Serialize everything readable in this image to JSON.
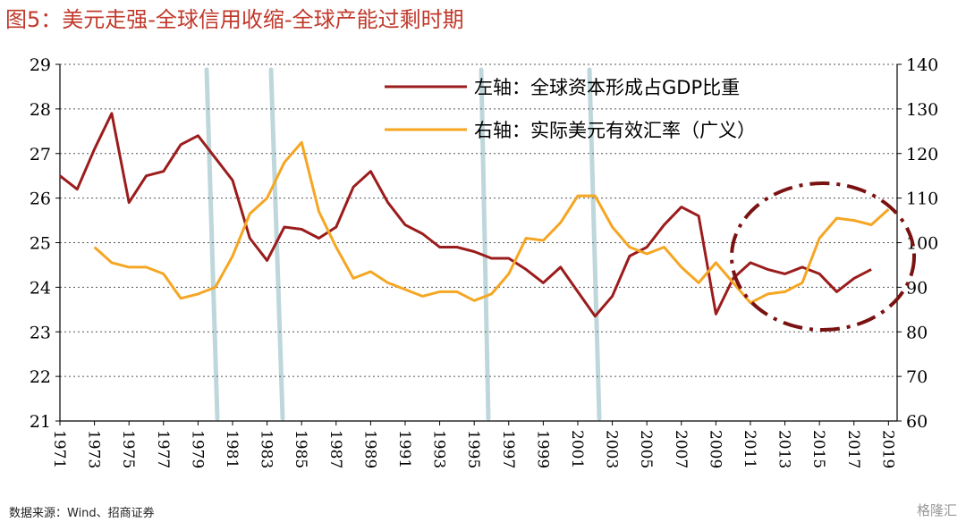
{
  "title": "图5：美元走强-全球信用收缩-全球产能过剩时期",
  "source": "数据来源：Wind、招商证券",
  "watermark": "格隆汇",
  "colors": {
    "title": "#c0392b",
    "series_left": "#9b1c1c",
    "series_right": "#f5a623",
    "stripes": "#b7d3d8",
    "ellipse": "#7a1212"
  },
  "chart_data": {
    "type": "line",
    "title": "图5：美元走强-全球信用收缩-全球产能过剩时期",
    "xlabel": "",
    "x_tick_labels": [
      "1971",
      "1973",
      "1975",
      "1977",
      "1979",
      "1981",
      "1983",
      "1985",
      "1987",
      "1989",
      "1991",
      "1993",
      "1995",
      "1997",
      "1999",
      "2001",
      "2003",
      "2005",
      "2007",
      "2009",
      "2011",
      "2013",
      "2015",
      "2017",
      "2019"
    ],
    "left_axis": {
      "ylim": [
        21,
        29
      ],
      "ticks": [
        21,
        22,
        23,
        24,
        25,
        26,
        27,
        28,
        29
      ]
    },
    "right_axis": {
      "ylim": [
        60,
        140
      ],
      "ticks": [
        60,
        70,
        80,
        90,
        100,
        110,
        120,
        130,
        140
      ]
    },
    "grid": "horizontal dotted",
    "legend_position": "top-right",
    "series": [
      {
        "name": "左轴：全球资本形成占GDP比重",
        "axis": "left",
        "x": [
          1971,
          1972,
          1973,
          1974,
          1975,
          1976,
          1977,
          1978,
          1979,
          1980,
          1981,
          1982,
          1983,
          1984,
          1985,
          1986,
          1987,
          1988,
          1989,
          1990,
          1991,
          1992,
          1993,
          1994,
          1995,
          1996,
          1997,
          1998,
          1999,
          2000,
          2001,
          2002,
          2003,
          2004,
          2005,
          2006,
          2007,
          2008,
          2009,
          2010,
          2011,
          2012,
          2013,
          2014,
          2015,
          2016,
          2017,
          2018
        ],
        "values": [
          26.5,
          26.2,
          27.1,
          27.9,
          25.9,
          26.5,
          26.6,
          27.2,
          27.4,
          26.9,
          26.4,
          25.1,
          24.6,
          25.35,
          25.3,
          25.1,
          25.35,
          26.25,
          26.6,
          25.9,
          25.4,
          25.2,
          24.9,
          24.9,
          24.8,
          24.65,
          24.65,
          24.4,
          24.1,
          24.45,
          23.9,
          23.35,
          23.8,
          24.7,
          24.9,
          25.4,
          25.8,
          25.6,
          23.4,
          24.2,
          24.55,
          24.4,
          24.3,
          24.45,
          24.3,
          23.9,
          24.2,
          24.4
        ]
      },
      {
        "name": "右轴：实际美元有效汇率（广义）",
        "axis": "right",
        "x": [
          1973,
          1974,
          1975,
          1976,
          1977,
          1978,
          1979,
          1980,
          1981,
          1982,
          1983,
          1984,
          1985,
          1986,
          1987,
          1988,
          1989,
          1990,
          1991,
          1992,
          1993,
          1994,
          1995,
          1996,
          1997,
          1998,
          1999,
          2000,
          2001,
          2002,
          2003,
          2004,
          2005,
          2006,
          2007,
          2008,
          2009,
          2010,
          2011,
          2012,
          2013,
          2014,
          2015,
          2016,
          2017,
          2018,
          2019
        ],
        "values": [
          99,
          95.5,
          94.5,
          94.5,
          93,
          87.5,
          88.5,
          90,
          97,
          106.5,
          110,
          118,
          122.5,
          107,
          99,
          92,
          93.5,
          91,
          89.5,
          88,
          89,
          89,
          87,
          88.5,
          93,
          101,
          100.5,
          104.5,
          110.5,
          110.5,
          103.5,
          99,
          97.5,
          99,
          94.5,
          91,
          95.5,
          91,
          86.5,
          88.5,
          89,
          91,
          101,
          105.5,
          105,
          104,
          107.5
        ]
      }
    ]
  }
}
